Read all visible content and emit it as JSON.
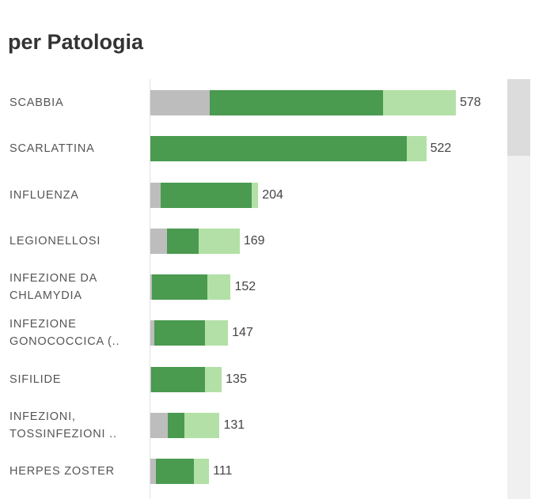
{
  "chart_data": {
    "type": "stacked-bar",
    "orientation": "horizontal",
    "title": "per Patologia",
    "categories": [
      "SCABBIA",
      "SCARLATTINA",
      "INFLUENZA",
      "LEGIONELLOSI",
      "INFEZIONE DA\nCHLAMYDIA",
      "INFEZIONE\nGONOCOCCICA (..",
      "SIFILIDE",
      "INFEZIONI,\nTOSSINFEZIONI ..",
      "HERPES ZOSTER"
    ],
    "series": [
      {
        "color": "#bdbdbd",
        "values": [
          112,
          0,
          19,
          31,
          3,
          7,
          2,
          33,
          10
        ]
      },
      {
        "color": "#4a9a4f",
        "values": [
          328,
          485,
          172,
          61,
          105,
          97,
          102,
          31,
          72
        ]
      },
      {
        "color": "#b3e0a6",
        "values": [
          138,
          37,
          13,
          77,
          44,
          43,
          31,
          67,
          29
        ]
      }
    ],
    "totals": [
      578,
      522,
      204,
      169,
      152,
      147,
      135,
      131,
      111
    ]
  }
}
